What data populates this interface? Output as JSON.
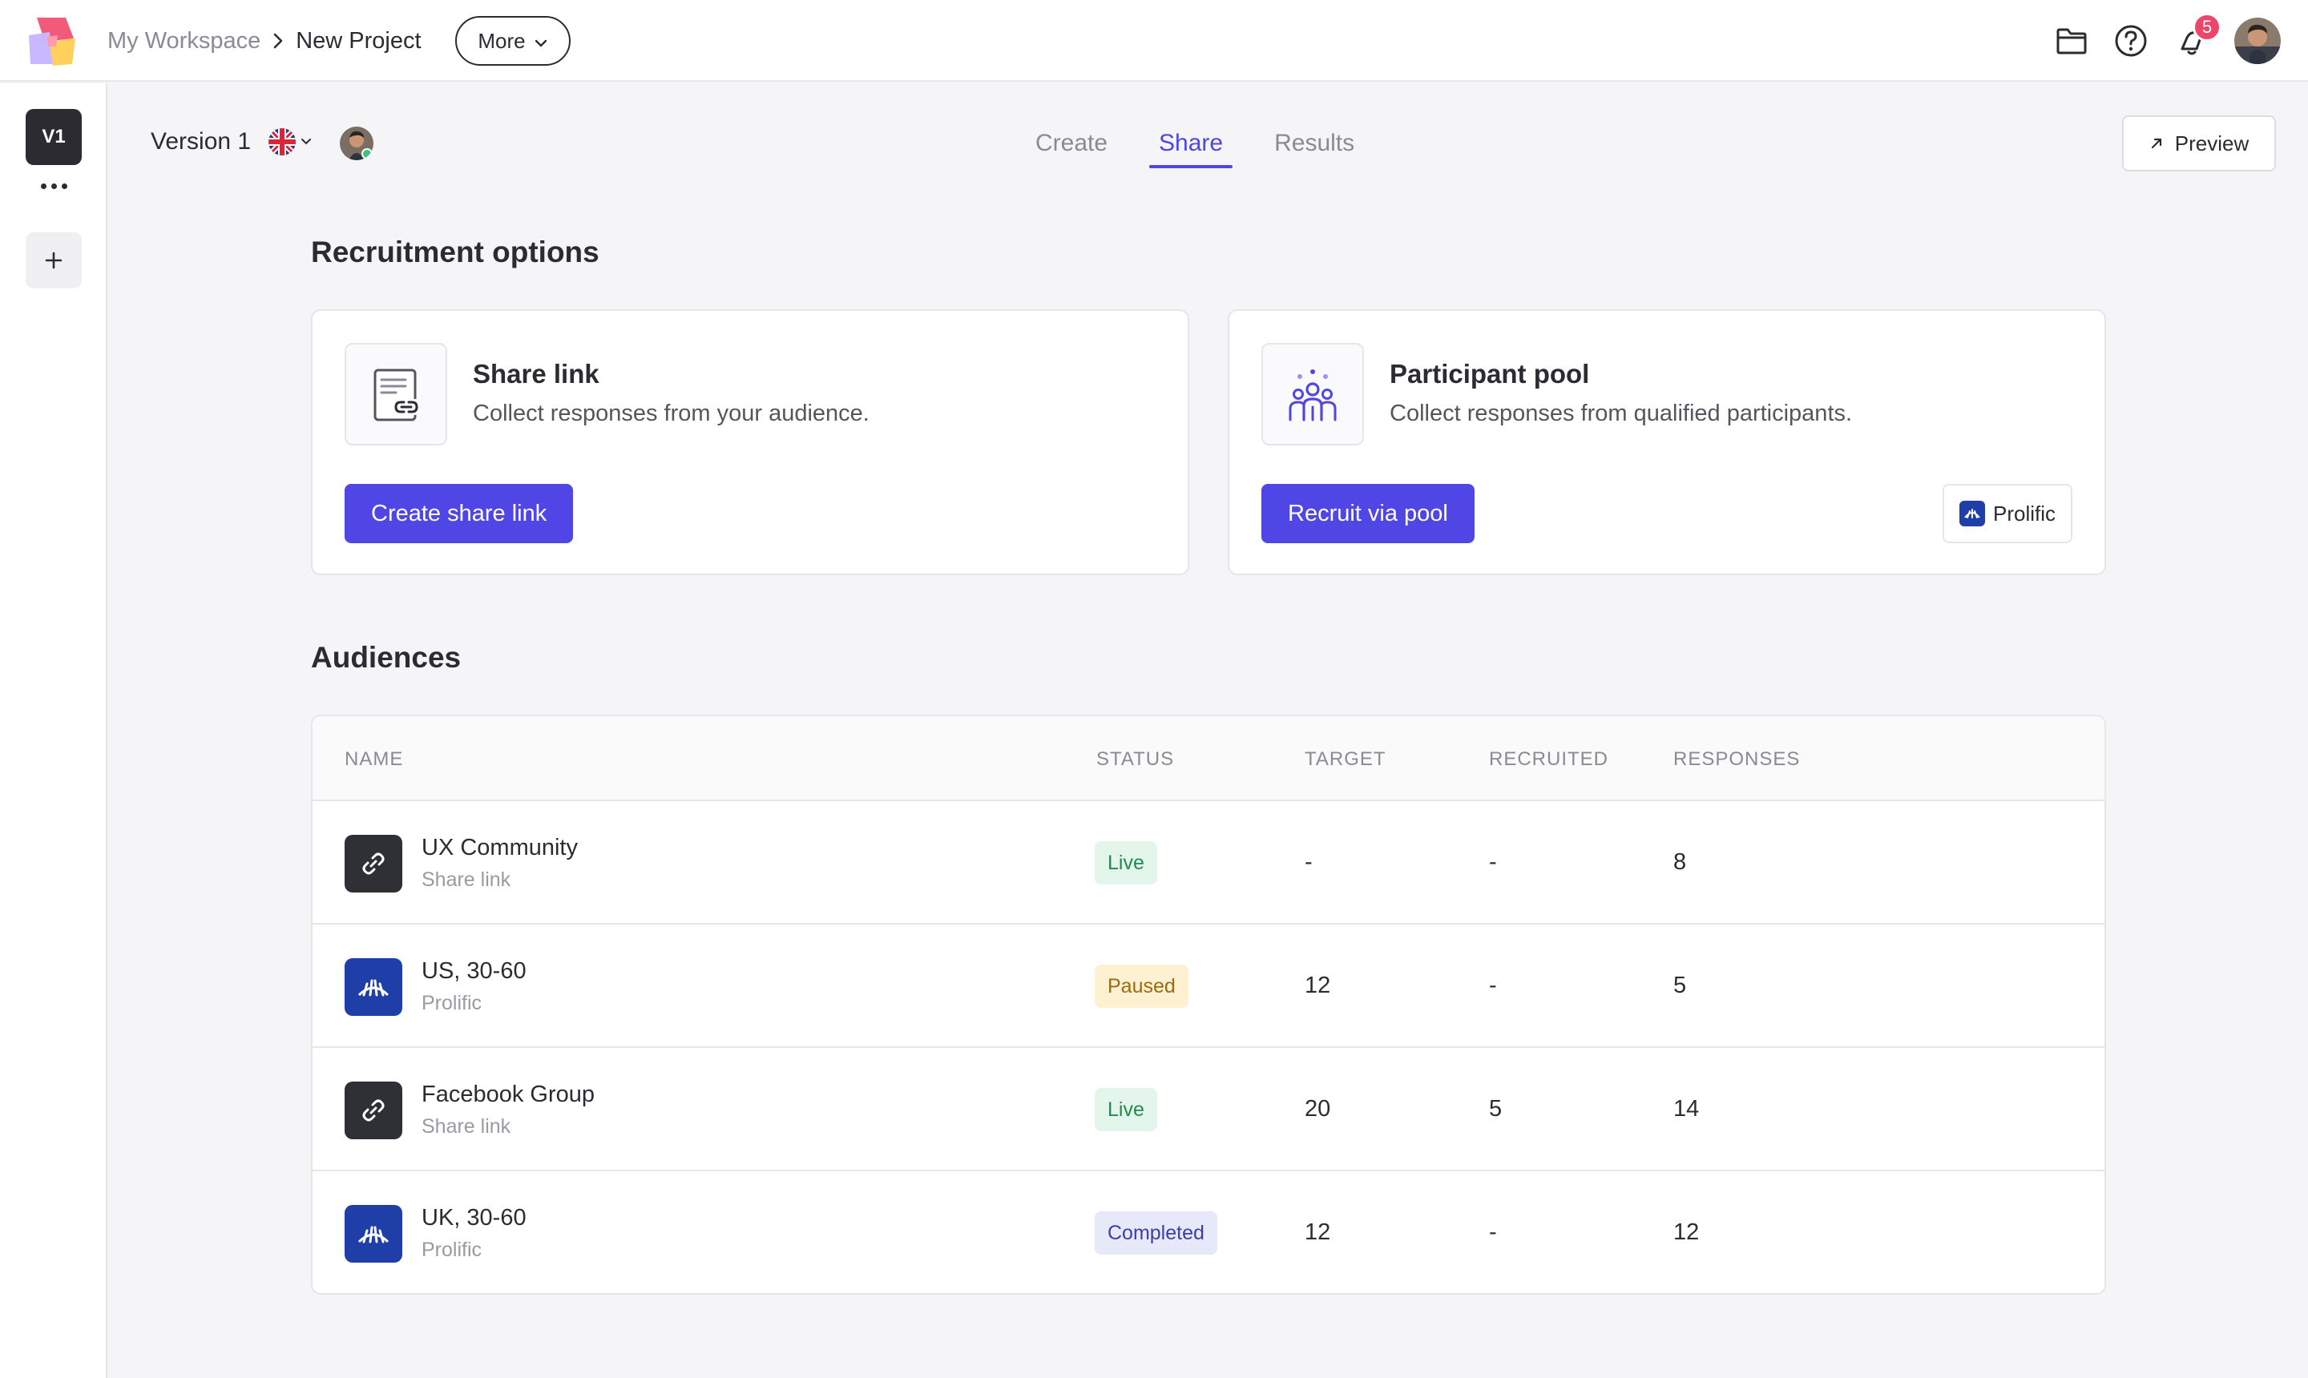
{
  "header": {
    "workspace": "My Workspace",
    "project": "New Project",
    "more_label": "More",
    "notification_count": "5"
  },
  "rail": {
    "version_badge": "V1"
  },
  "subheader": {
    "version_label": "Version 1",
    "tabs": [
      {
        "label": "Create",
        "active": false
      },
      {
        "label": "Share",
        "active": true
      },
      {
        "label": "Results",
        "active": false
      }
    ],
    "preview_label": "Preview"
  },
  "recruitment": {
    "title": "Recruitment options",
    "share_link": {
      "title": "Share link",
      "description": "Collect responses from your audience.",
      "button": "Create share link",
      "icon": "link-document-icon"
    },
    "participant_pool": {
      "title": "Participant pool",
      "description": "Collect responses from qualified participants.",
      "button": "Recruit via pool",
      "provider": "Prolific",
      "icon": "participants-icon"
    }
  },
  "audiences": {
    "title": "Audiences",
    "columns": [
      "NAME",
      "STATUS",
      "TARGET",
      "RECRUITED",
      "RESPONSES"
    ],
    "rows": [
      {
        "name": "UX Community",
        "source": "Share link",
        "type": "link",
        "status": "Live",
        "target": "-",
        "recruited": "-",
        "responses": "8"
      },
      {
        "name": "US, 30-60",
        "source": "Prolific",
        "type": "prolific",
        "status": "Paused",
        "target": "12",
        "recruited": "-",
        "responses": "5"
      },
      {
        "name": "Facebook Group",
        "source": "Share link",
        "type": "link",
        "status": "Live",
        "target": "20",
        "recruited": "5",
        "responses": "14"
      },
      {
        "name": "UK, 30-60",
        "source": "Prolific",
        "type": "prolific",
        "status": "Completed",
        "target": "12",
        "recruited": "-",
        "responses": "12"
      }
    ]
  },
  "colors": {
    "accent": "#5046e5",
    "prolific": "#1f3ea8",
    "live_bg": "#e4f6ec",
    "paused_bg": "#fdf1d2",
    "completed_bg": "#e8e8fb",
    "badge": "#f0456a"
  }
}
